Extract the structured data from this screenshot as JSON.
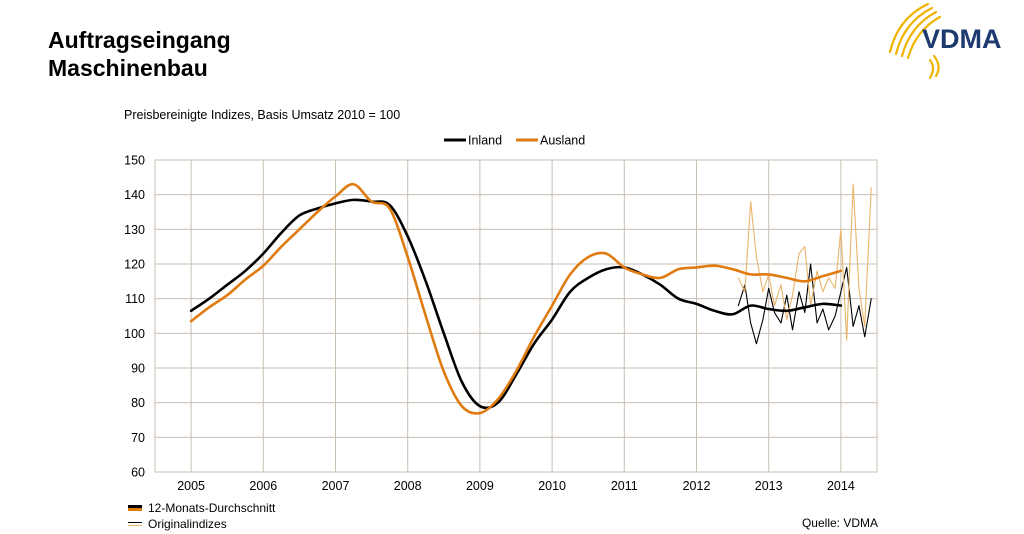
{
  "header": {
    "title_line1": "Auftragseingang",
    "title_line2": "Maschinenbau",
    "logo_text": "VDMA"
  },
  "colors": {
    "inland": "#000000",
    "ausland": "#e07b10",
    "ausland_original": "#e9b46a",
    "grid": "#c8bfb3",
    "logo_gold": "#f0b400",
    "logo_blue": "#1d3a6e"
  },
  "chart_data": {
    "type": "line",
    "subtitle": "Preisbereinigte Indizes, Basis Umsatz 2010 = 100",
    "ylim": [
      60,
      150
    ],
    "yticks": [
      60,
      70,
      80,
      90,
      100,
      110,
      120,
      130,
      140,
      150
    ],
    "xlim": [
      2004.5,
      2014.5
    ],
    "xticks": [
      "2005",
      "2006",
      "2007",
      "2008",
      "2009",
      "2010",
      "2011",
      "2012",
      "2013",
      "2014"
    ],
    "grid": true,
    "legend_top": [
      "Inland",
      "Ausland"
    ],
    "legend_bottom": [
      "12-Monats-Durchschnitt",
      "Originalindizes"
    ],
    "source": "Quelle: VDMA",
    "series": [
      {
        "name": "Inland",
        "kind": "12-Monats-Durchschnitt",
        "x": [
          2005.0,
          2005.25,
          2005.5,
          2005.75,
          2006.0,
          2006.25,
          2006.5,
          2006.75,
          2007.0,
          2007.25,
          2007.5,
          2007.75,
          2008.0,
          2008.25,
          2008.5,
          2008.75,
          2009.0,
          2009.25,
          2009.5,
          2009.75,
          2010.0,
          2010.25,
          2010.5,
          2010.75,
          2011.0,
          2011.25,
          2011.5,
          2011.75,
          2012.0,
          2012.25,
          2012.5,
          2012.75,
          2013.0,
          2013.25,
          2013.5,
          2013.75,
          2014.0
        ],
        "y": [
          106.5,
          110,
          114,
          118,
          123,
          129,
          134,
          136,
          137.5,
          138.5,
          138,
          137,
          128,
          115,
          100,
          86,
          79,
          80,
          88,
          97,
          104,
          112,
          116,
          118.5,
          119,
          117,
          114,
          110,
          108.5,
          106.5,
          105.5,
          108,
          107,
          106.5,
          107.5,
          108.5,
          108
        ]
      },
      {
        "name": "Ausland",
        "kind": "12-Monats-Durchschnitt",
        "x": [
          2005.0,
          2005.25,
          2005.5,
          2005.75,
          2006.0,
          2006.25,
          2006.5,
          2006.75,
          2007.0,
          2007.25,
          2007.5,
          2007.75,
          2008.0,
          2008.25,
          2008.5,
          2008.75,
          2009.0,
          2009.25,
          2009.5,
          2009.75,
          2010.0,
          2010.25,
          2010.5,
          2010.75,
          2011.0,
          2011.25,
          2011.5,
          2011.75,
          2012.0,
          2012.25,
          2012.5,
          2012.75,
          2013.0,
          2013.25,
          2013.5,
          2013.75,
          2014.0
        ],
        "y": [
          103.5,
          107.5,
          111,
          115.5,
          119.5,
          125,
          130,
          135,
          139.5,
          143,
          138,
          136,
          122,
          105,
          89,
          79,
          77,
          81,
          89,
          99,
          108,
          117,
          122,
          123,
          119,
          117,
          116,
          118.5,
          119,
          119.5,
          118.5,
          117,
          117,
          116,
          115,
          116.5,
          118
        ]
      },
      {
        "name": "Inland",
        "kind": "Originalindizes",
        "x": [
          2012.58,
          2012.67,
          2012.75,
          2012.83,
          2012.92,
          2013.0,
          2013.08,
          2013.17,
          2013.25,
          2013.33,
          2013.42,
          2013.5,
          2013.58,
          2013.67,
          2013.75,
          2013.83,
          2013.92,
          2014.0,
          2014.08,
          2014.17,
          2014.25,
          2014.33,
          2014.42
        ],
        "y": [
          108,
          114,
          103,
          97,
          104,
          113,
          106,
          103,
          111,
          101,
          112,
          106,
          120,
          103,
          107,
          101,
          105,
          112,
          119,
          102,
          108,
          99,
          110
        ]
      },
      {
        "name": "Ausland",
        "kind": "Originalindizes",
        "x": [
          2012.58,
          2012.67,
          2012.75,
          2012.83,
          2012.92,
          2013.0,
          2013.08,
          2013.17,
          2013.25,
          2013.33,
          2013.42,
          2013.5,
          2013.58,
          2013.67,
          2013.75,
          2013.83,
          2013.92,
          2014.0,
          2014.08,
          2014.17,
          2014.25,
          2014.33,
          2014.42
        ],
        "y": [
          116,
          112,
          138,
          122,
          112,
          117,
          108,
          114,
          104,
          111,
          123,
          125,
          108,
          118,
          112,
          116,
          113,
          130,
          98,
          143,
          113,
          102,
          142
        ]
      }
    ]
  }
}
